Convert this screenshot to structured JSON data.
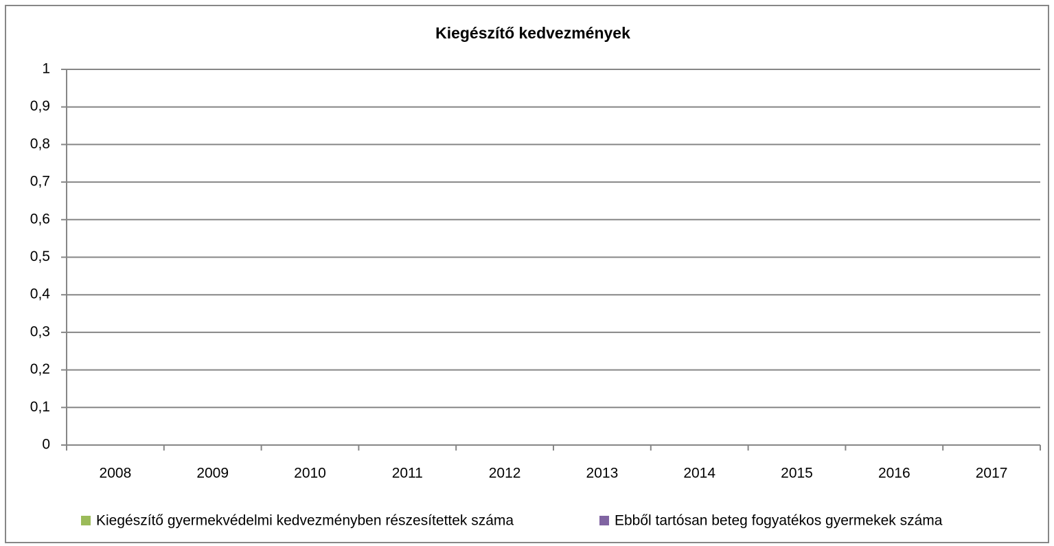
{
  "chart_data": {
    "type": "bar",
    "title": "Kiegészítő kedvezmények",
    "categories": [
      "2008",
      "2009",
      "2010",
      "2011",
      "2012",
      "2013",
      "2014",
      "2015",
      "2016",
      "2017"
    ],
    "series": [
      {
        "name": "Kiegészítő gyermekvédelmi kedvezményben részesítettek száma",
        "color": "#9bbb59",
        "values": [
          0,
          0,
          0,
          0,
          0,
          0,
          0,
          0,
          0,
          0
        ]
      },
      {
        "name": "Ebből tartósan beteg fogyatékos gyermekek száma",
        "color": "#8064a2",
        "values": [
          0,
          0,
          0,
          0,
          0,
          0,
          0,
          0,
          0,
          0
        ]
      }
    ],
    "ylim": [
      0,
      1
    ],
    "yticks": [
      0,
      {
        "value": 0.1,
        "label": "0,1"
      },
      {
        "value": 0.2,
        "label": "0,2"
      },
      {
        "value": 0.3,
        "label": "0,3"
      },
      {
        "value": 0.4,
        "label": "0,4"
      },
      {
        "value": 0.5,
        "label": "0,5"
      },
      {
        "value": 0.6,
        "label": "0,6"
      },
      {
        "value": 0.7,
        "label": "0,7"
      },
      {
        "value": 0.8,
        "label": "0,8"
      },
      {
        "value": 0.9,
        "label": "0,9"
      },
      1
    ],
    "grid": true,
    "legend": "bottom"
  }
}
